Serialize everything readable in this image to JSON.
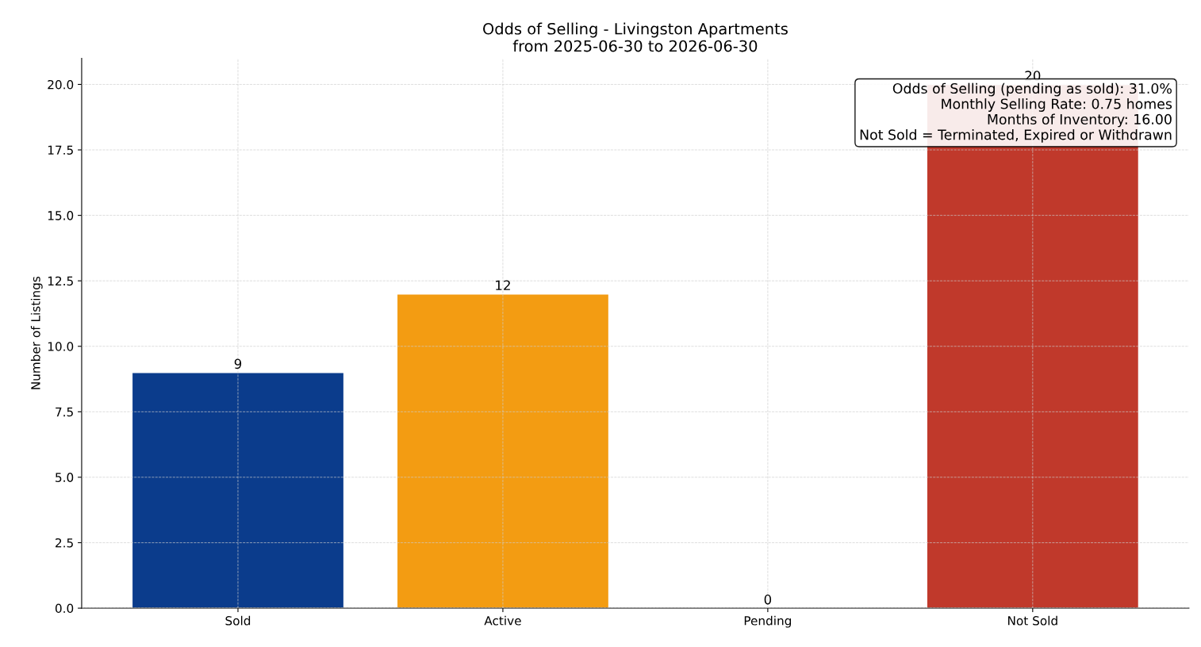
{
  "chart_data": {
    "type": "bar",
    "title": "Odds of Selling - Livingston Apartments\nfrom 2025-06-30 to 2026-06-30",
    "ylabel": "Number of Listings",
    "categories": [
      "Sold",
      "Active",
      "Pending",
      "Not Sold"
    ],
    "values": [
      9,
      12,
      0,
      20
    ],
    "colors": [
      "#0b3c8c",
      "#f39c12",
      null,
      "#c0392b"
    ],
    "ylim": [
      0,
      21
    ],
    "yticks": [
      {
        "value": 0,
        "label": "0.0"
      },
      {
        "value": 2.5,
        "label": "2.5"
      },
      {
        "value": 5,
        "label": "5.0"
      },
      {
        "value": 7.5,
        "label": "7.5"
      },
      {
        "value": 10,
        "label": "10.0"
      },
      {
        "value": 12.5,
        "label": "12.5"
      },
      {
        "value": 15,
        "label": "15.0"
      },
      {
        "value": 17.5,
        "label": "17.5"
      },
      {
        "value": 20,
        "label": "20.0"
      }
    ],
    "grid": true,
    "data_labels": true,
    "annotations": [
      "Odds of Selling (pending as sold): 31.0%\nMonthly Selling Rate: 0.75 homes\nMonths of Inventory: 16.00\nNot Sold = Terminated, Expired or Withdrawn"
    ]
  }
}
